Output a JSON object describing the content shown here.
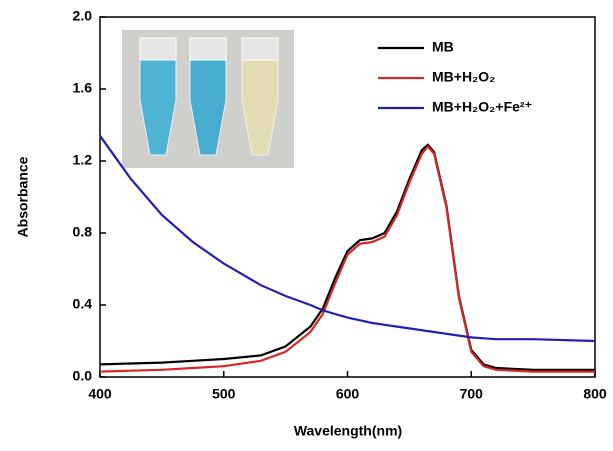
{
  "chart_data": {
    "type": "line",
    "xlabel": "Wavelength(nm)",
    "ylabel": "Absorbance",
    "x": [
      400,
      425,
      450,
      475,
      500,
      530,
      550,
      570,
      580,
      590,
      600,
      610,
      620,
      630,
      640,
      650,
      660,
      665,
      670,
      680,
      690,
      700,
      710,
      720,
      750,
      800
    ],
    "series": [
      {
        "name": "MB",
        "color": "#000000",
        "values": [
          0.07,
          0.075,
          0.08,
          0.09,
          0.1,
          0.12,
          0.17,
          0.28,
          0.38,
          0.55,
          0.7,
          0.76,
          0.77,
          0.8,
          0.92,
          1.1,
          1.26,
          1.29,
          1.25,
          0.95,
          0.45,
          0.15,
          0.07,
          0.05,
          0.04,
          0.04
        ]
      },
      {
        "name": "MB+H₂O₂",
        "color": "#d62728",
        "values": [
          0.03,
          0.035,
          0.04,
          0.05,
          0.06,
          0.09,
          0.14,
          0.25,
          0.35,
          0.52,
          0.68,
          0.74,
          0.75,
          0.78,
          0.9,
          1.08,
          1.24,
          1.28,
          1.24,
          0.94,
          0.44,
          0.14,
          0.06,
          0.04,
          0.03,
          0.03
        ]
      },
      {
        "name": "MB+H₂O₂+Fe²⁺",
        "color": "#1f1fb4",
        "values": [
          1.34,
          1.1,
          0.9,
          0.75,
          0.63,
          0.51,
          0.45,
          0.4,
          0.37,
          0.35,
          0.33,
          0.315,
          0.3,
          0.29,
          0.28,
          0.27,
          0.26,
          0.255,
          0.25,
          0.24,
          0.23,
          0.22,
          0.215,
          0.21,
          0.21,
          0.2
        ]
      }
    ],
    "xlim": [
      400,
      800
    ],
    "xticks": [
      400,
      500,
      600,
      700,
      800
    ],
    "ylim": [
      0,
      2
    ],
    "yticks": [
      {
        "value": 0,
        "label": "0.0"
      },
      0.4,
      0.8,
      1.2,
      1.6,
      {
        "value": 2,
        "label": "2.0"
      }
    ],
    "legend": "upper right"
  }
}
